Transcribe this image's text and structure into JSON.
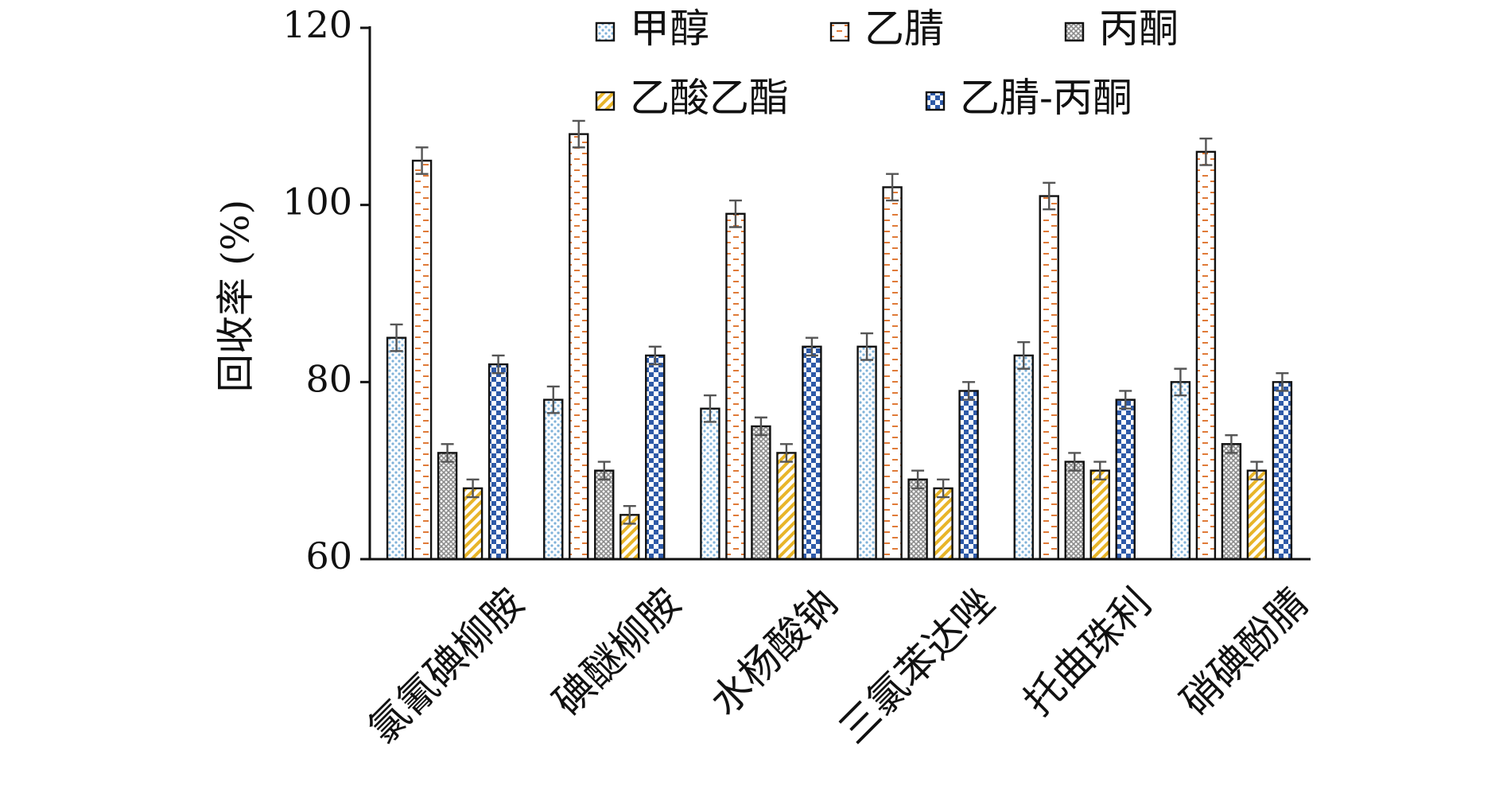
{
  "chart_data": {
    "type": "bar",
    "title": "",
    "xlabel": "",
    "ylabel": "回收率 (%)",
    "ylim": [
      60,
      120
    ],
    "yticks": [
      60,
      80,
      100,
      120
    ],
    "grid": false,
    "legend_position": "top-right",
    "categories": [
      "氯氰碘柳胺",
      "碘醚柳胺",
      "水杨酸钠",
      "三氯苯达唑",
      "托曲珠利",
      "硝碘酚腈"
    ],
    "series": [
      {
        "name": "甲醇",
        "values": [
          85,
          78,
          77,
          84,
          83,
          80
        ],
        "errors": [
          1.5,
          1.5,
          1.5,
          1.5,
          1.5,
          1.5
        ],
        "color": "#7fb2d9",
        "pattern": "dots"
      },
      {
        "name": "乙腈",
        "values": [
          105,
          108,
          99,
          102,
          101,
          106
        ],
        "errors": [
          1.5,
          1.5,
          1.5,
          1.5,
          1.5,
          1.5
        ],
        "color": "#e07b39",
        "pattern": "dashes"
      },
      {
        "name": "丙酮",
        "values": [
          72,
          70,
          75,
          69,
          71,
          73
        ],
        "errors": [
          1.0,
          1.0,
          1.0,
          1.0,
          1.0,
          1.0
        ],
        "color": "#8c8c8c",
        "pattern": "crosshatch"
      },
      {
        "name": "乙酸乙酯",
        "values": [
          68,
          65,
          72,
          68,
          70,
          70
        ],
        "errors": [
          1.0,
          1.0,
          1.0,
          1.0,
          1.0,
          1.0
        ],
        "color": "#e8b52a",
        "pattern": "diagonal"
      },
      {
        "name": "乙腈-丙酮",
        "values": [
          82,
          83,
          84,
          79,
          78,
          80
        ],
        "errors": [
          1.0,
          1.0,
          1.0,
          1.0,
          1.0,
          1.0
        ],
        "color": "#2e5aa8",
        "pattern": "checker"
      }
    ]
  }
}
